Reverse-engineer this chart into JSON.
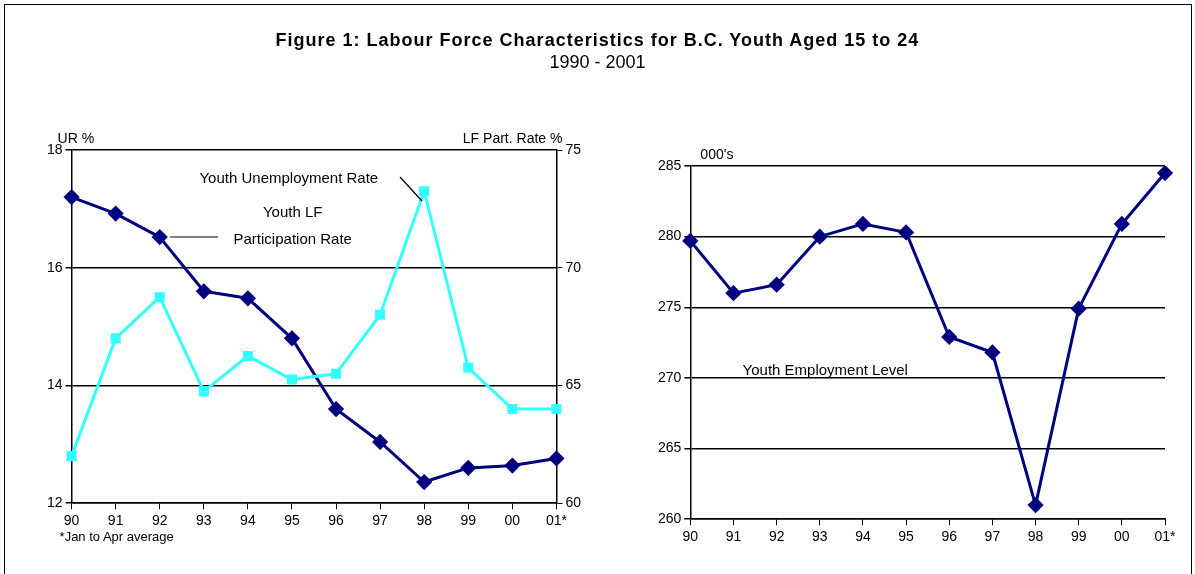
{
  "chart_data": [
    {
      "type": "line",
      "title": "Figure 1:  Labour Force Characteristics for B.C. Youth Aged 15 to 24",
      "subtitle": "1990 - 2001",
      "ylabel": "UR %",
      "y2label": "LF Part. Rate %",
      "categories": [
        "90",
        "91",
        "92",
        "93",
        "94",
        "95",
        "96",
        "97",
        "98",
        "99",
        "00",
        "01*"
      ],
      "series": [
        {
          "name": "Youth Unemployment Rate",
          "color": "#33ffff",
          "marker": "square",
          "values": [
            12.8,
            14.8,
            15.5,
            13.9,
            14.5,
            14.1,
            14.2,
            15.2,
            17.3,
            14.3,
            13.6,
            13.6
          ]
        },
        {
          "name": "Youth LF Participation Rate",
          "color": "#000080",
          "marker": "diamond",
          "axis": "y2",
          "values": [
            73.0,
            72.3,
            71.3,
            69.0,
            68.7,
            67.0,
            64.0,
            62.6,
            60.9,
            61.5,
            61.6,
            61.9
          ]
        }
      ],
      "ylim": [
        12,
        18
      ],
      "yticks": [
        12,
        14,
        16,
        18
      ],
      "y2lim": [
        60,
        75
      ],
      "y2ticks": [
        60,
        65,
        70,
        75
      ],
      "grid": "y",
      "legend": false,
      "annotations": [
        "*Jan to Apr average"
      ]
    },
    {
      "type": "line",
      "ylabel": "000's",
      "categories": [
        "90",
        "91",
        "92",
        "93",
        "94",
        "95",
        "96",
        "97",
        "98",
        "99",
        "00",
        "01*"
      ],
      "series": [
        {
          "name": "Youth Employment Level",
          "color": "#000080",
          "marker": "diamond",
          "values": [
            279.7,
            276.0,
            276.6,
            280.0,
            280.9,
            280.3,
            272.9,
            271.8,
            261.0,
            274.9,
            280.9,
            284.5
          ]
        }
      ],
      "ylim": [
        260,
        285
      ],
      "yticks": [
        260,
        265,
        270,
        275,
        280,
        285
      ],
      "grid": "y",
      "legend": false
    }
  ]
}
